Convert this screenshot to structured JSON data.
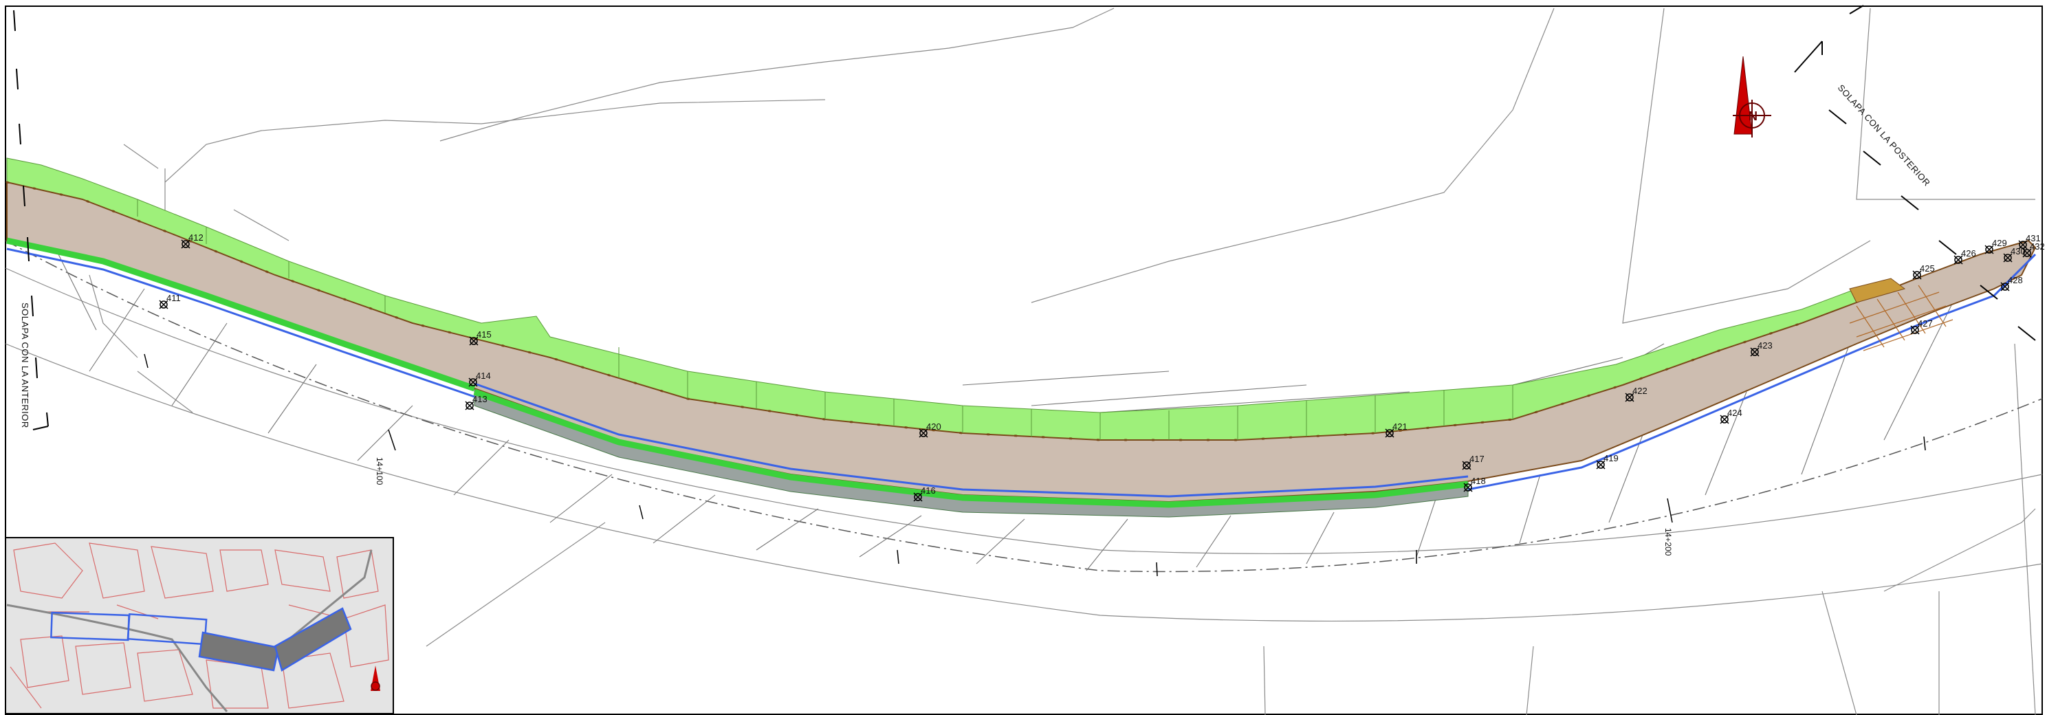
{
  "overlap_previous_label": "SOLAPA CON LA ANTERIOR",
  "overlap_next_label": "SOLAPA CON LA POSTERIOR",
  "north_letter": "N",
  "chainage": [
    "14+100",
    "14+200"
  ],
  "points": [
    "411",
    "412",
    "413",
    "414",
    "415",
    "416",
    "417",
    "418",
    "419",
    "420",
    "421",
    "422",
    "423",
    "424",
    "425",
    "426",
    "427",
    "428",
    "429",
    "430",
    "431",
    "432"
  ],
  "colors": {
    "road": "#cdbdb0",
    "embankment": "#9ef07a",
    "green_strip": "#3bd13b",
    "blue_line": "#3a63e6",
    "shoulder_grey": "#9aa3a0",
    "brown_line": "#7a4a1a",
    "hatch": "#c99a3a",
    "north_red": "#cc0000",
    "inset_bg": "#e4e4e4",
    "inset_parcels": "#d86b6b"
  }
}
